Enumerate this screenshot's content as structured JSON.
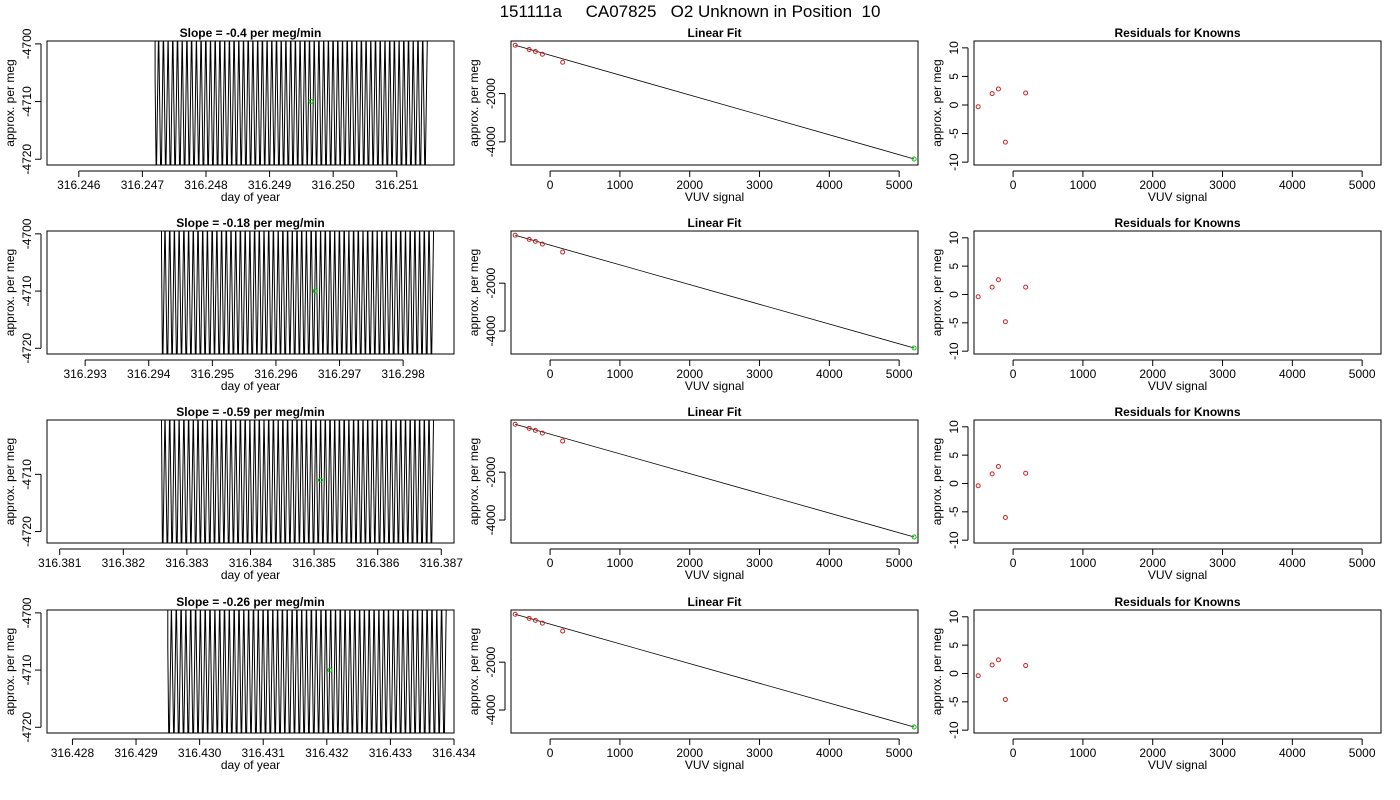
{
  "page": {
    "title": "151111a     CA07825   O2 Unknown in Position  10"
  },
  "colors": {
    "trace": "#000000",
    "unknown_point": "#00cc00",
    "residual_point": "#cc2222",
    "frame": "#000000"
  },
  "chart_data": [
    {
      "type": "line",
      "row": 1,
      "title": "Slope =  -0.4  per meg/min",
      "xlabel": "day of year",
      "ylabel": "approx. per meg",
      "xlim": [
        316.2455,
        316.2519
      ],
      "ylim": [
        -4721,
        -4699.5
      ],
      "xticks": [
        316.246,
        316.247,
        316.248,
        316.249,
        316.25,
        316.251
      ],
      "xtick_labels": [
        "316.246",
        "316.247",
        "316.248",
        "316.249",
        "316.250",
        "316.251"
      ],
      "yticks": [
        -4700,
        -4710,
        -4720
      ],
      "ytick_labels": [
        "-4700",
        "-4710",
        "-4720"
      ],
      "trace_x_range": [
        316.2472,
        316.2515
      ],
      "trace_y_range": [
        -4721,
        -4699.5
      ],
      "trace_onset_y": -4706,
      "trace_cycles": 58,
      "unknown_point": {
        "x": 316.24965,
        "y": -4710.0
      }
    },
    {
      "type": "scatter",
      "row": 1,
      "title": "Linear Fit",
      "xlabel": "VUV signal",
      "ylabel": "approx. per meg",
      "xlim": [
        -560,
        5270
      ],
      "ylim": [
        -4960,
        180
      ],
      "xticks": [
        0,
        1000,
        2000,
        3000,
        4000,
        5000
      ],
      "xtick_labels": [
        "0",
        "1000",
        "2000",
        "3000",
        "4000",
        "5000"
      ],
      "yticks": [
        -2000,
        -4000
      ],
      "ytick_labels": [
        "-2000",
        "-4000"
      ],
      "known_points": [
        [
          -500,
          3
        ],
        [
          -300,
          -170
        ],
        [
          -210,
          -255
        ],
        [
          -110,
          -370
        ],
        [
          180,
          -700
        ]
      ],
      "unknown_point": [
        5215,
        -4710
      ],
      "fit_line": [
        [
          -500,
          3
        ],
        [
          5215,
          -4710
        ]
      ]
    },
    {
      "type": "scatter",
      "row": 1,
      "title": "Residuals for Knowns",
      "xlabel": "VUV signal",
      "ylabel": "approx. per meg",
      "xlim": [
        -560,
        5270
      ],
      "ylim": [
        -10.5,
        11.2
      ],
      "xticks": [
        0,
        1000,
        2000,
        3000,
        4000,
        5000
      ],
      "xtick_labels": [
        "0",
        "1000",
        "2000",
        "3000",
        "4000",
        "5000"
      ],
      "yticks": [
        10,
        5,
        0,
        -5,
        -10
      ],
      "ytick_labels": [
        "10",
        "5",
        "0",
        "-5",
        "-10"
      ],
      "points": [
        [
          -500,
          -0.3
        ],
        [
          -300,
          2.0
        ],
        [
          -210,
          2.8
        ],
        [
          -110,
          -6.5
        ],
        [
          180,
          2.1
        ]
      ]
    },
    {
      "type": "line",
      "row": 2,
      "title": "Slope =  -0.18  per meg/min",
      "xlabel": "day of year",
      "ylabel": "approx. per meg",
      "xlim": [
        316.2924,
        316.2988
      ],
      "ylim": [
        -4721,
        -4699.5
      ],
      "xticks": [
        316.293,
        316.294,
        316.295,
        316.296,
        316.297,
        316.298
      ],
      "xtick_labels": [
        "316.293",
        "316.294",
        "316.295",
        "316.296",
        "316.297",
        "316.298"
      ],
      "yticks": [
        -4700,
        -4710,
        -4720
      ],
      "ytick_labels": [
        "-4700",
        "-4710",
        "-4720"
      ],
      "trace_x_range": [
        316.2942,
        316.2985
      ],
      "trace_y_range": [
        -4721,
        -4699.5
      ],
      "trace_onset_y": -4703,
      "trace_cycles": 58,
      "unknown_point": {
        "x": 316.29662,
        "y": -4710.0
      }
    },
    {
      "type": "scatter",
      "row": 2,
      "title": "Linear Fit",
      "xlabel": "VUV signal",
      "ylabel": "approx. per meg",
      "xlim": [
        -560,
        5270
      ],
      "ylim": [
        -4960,
        180
      ],
      "xticks": [
        0,
        1000,
        2000,
        3000,
        4000,
        5000
      ],
      "xtick_labels": [
        "0",
        "1000",
        "2000",
        "3000",
        "4000",
        "5000"
      ],
      "yticks": [
        -2000,
        -4000
      ],
      "ytick_labels": [
        "-2000",
        "-4000"
      ],
      "known_points": [
        [
          -500,
          3
        ],
        [
          -300,
          -170
        ],
        [
          -210,
          -255
        ],
        [
          -110,
          -370
        ],
        [
          180,
          -700
        ]
      ],
      "unknown_point": [
        5215,
        -4710
      ],
      "fit_line": [
        [
          -500,
          3
        ],
        [
          5215,
          -4710
        ]
      ]
    },
    {
      "type": "scatter",
      "row": 2,
      "title": "Residuals for Knowns",
      "xlabel": "VUV signal",
      "ylabel": "approx. per meg",
      "xlim": [
        -560,
        5270
      ],
      "ylim": [
        -10.5,
        11.2
      ],
      "xticks": [
        0,
        1000,
        2000,
        3000,
        4000,
        5000
      ],
      "xtick_labels": [
        "0",
        "1000",
        "2000",
        "3000",
        "4000",
        "5000"
      ],
      "yticks": [
        10,
        5,
        0,
        -5,
        -10
      ],
      "ytick_labels": [
        "10",
        "5",
        "0",
        "-5",
        "-10"
      ],
      "points": [
        [
          -500,
          -0.4
        ],
        [
          -300,
          1.3
        ],
        [
          -210,
          2.6
        ],
        [
          -110,
          -4.8
        ],
        [
          180,
          1.3
        ]
      ]
    },
    {
      "type": "line",
      "row": 3,
      "title": "Slope =  -0.59  per meg/min",
      "xlabel": "day of year",
      "ylabel": "approx. per meg",
      "xlim": [
        316.3808,
        316.3872
      ],
      "ylim": [
        -4722,
        -4700.5
      ],
      "xticks": [
        316.381,
        316.382,
        316.383,
        316.384,
        316.385,
        316.386,
        316.387
      ],
      "xtick_labels": [
        "316.381",
        "316.382",
        "316.383",
        "316.384",
        "316.385",
        "316.386",
        "316.387"
      ],
      "yticks": [
        -4710,
        -4720
      ],
      "ytick_labels": [
        "-4710",
        "-4720"
      ],
      "trace_x_range": [
        316.3826,
        316.3869
      ],
      "trace_y_range": [
        -4722,
        -4700.5
      ],
      "trace_onset_y": -4701,
      "trace_cycles": 58,
      "unknown_point": {
        "x": 316.3851,
        "y": -4711.0
      }
    },
    {
      "type": "scatter",
      "row": 3,
      "title": "Linear Fit",
      "xlabel": "VUV signal",
      "ylabel": "approx. per meg",
      "xlim": [
        -560,
        5270
      ],
      "ylim": [
        -4960,
        180
      ],
      "xticks": [
        0,
        1000,
        2000,
        3000,
        4000,
        5000
      ],
      "xtick_labels": [
        "0",
        "1000",
        "2000",
        "3000",
        "4000",
        "5000"
      ],
      "yticks": [
        -2000,
        -4000
      ],
      "ytick_labels": [
        "-2000",
        "-4000"
      ],
      "known_points": [
        [
          -500,
          3
        ],
        [
          -300,
          -170
        ],
        [
          -210,
          -255
        ],
        [
          -110,
          -370
        ],
        [
          180,
          -700
        ]
      ],
      "unknown_point": [
        5215,
        -4710
      ],
      "fit_line": [
        [
          -500,
          3
        ],
        [
          5215,
          -4710
        ]
      ]
    },
    {
      "type": "scatter",
      "row": 3,
      "title": "Residuals for Knowns",
      "xlabel": "VUV signal",
      "ylabel": "approx. per meg",
      "xlim": [
        -560,
        5270
      ],
      "ylim": [
        -10.5,
        11.2
      ],
      "xticks": [
        0,
        1000,
        2000,
        3000,
        4000,
        5000
      ],
      "xtick_labels": [
        "0",
        "1000",
        "2000",
        "3000",
        "4000",
        "5000"
      ],
      "yticks": [
        10,
        5,
        0,
        -5,
        -10
      ],
      "ytick_labels": [
        "10",
        "5",
        "0",
        "-5",
        "-10"
      ],
      "points": [
        [
          -500,
          -0.4
        ],
        [
          -300,
          1.7
        ],
        [
          -210,
          3.0
        ],
        [
          -110,
          -6.0
        ],
        [
          180,
          1.8
        ]
      ]
    },
    {
      "type": "line",
      "row": 4,
      "title": "Slope =  -0.26  per meg/min",
      "xlabel": "day of year",
      "ylabel": "approx. per meg",
      "xlim": [
        316.4276,
        316.434
      ],
      "ylim": [
        -4721,
        -4699.5
      ],
      "xticks": [
        316.428,
        316.429,
        316.43,
        316.431,
        316.432,
        316.433,
        316.434
      ],
      "xtick_labels": [
        "316.428",
        "316.429",
        "316.430",
        "316.431",
        "316.432",
        "316.433",
        "316.434"
      ],
      "yticks": [
        -4700,
        -4710,
        -4720
      ],
      "ytick_labels": [
        "-4700",
        "-4710",
        "-4720"
      ],
      "trace_x_range": [
        316.4295,
        316.4339
      ],
      "trace_y_range": [
        -4721,
        -4699.5
      ],
      "trace_onset_y": -4706,
      "trace_cycles": 58,
      "unknown_point": {
        "x": 316.43205,
        "y": -4710.0
      }
    },
    {
      "type": "scatter",
      "row": 4,
      "title": "Linear Fit",
      "xlabel": "VUV signal",
      "ylabel": "approx. per meg",
      "xlim": [
        -560,
        5270
      ],
      "ylim": [
        -4960,
        180
      ],
      "xticks": [
        0,
        1000,
        2000,
        3000,
        4000,
        5000
      ],
      "xtick_labels": [
        "0",
        "1000",
        "2000",
        "3000",
        "4000",
        "5000"
      ],
      "yticks": [
        -2000,
        -4000
      ],
      "ytick_labels": [
        "-2000",
        "-4000"
      ],
      "known_points": [
        [
          -500,
          3
        ],
        [
          -300,
          -170
        ],
        [
          -210,
          -255
        ],
        [
          -110,
          -370
        ],
        [
          180,
          -700
        ]
      ],
      "unknown_point": [
        5215,
        -4710
      ],
      "fit_line": [
        [
          -500,
          3
        ],
        [
          5215,
          -4710
        ]
      ]
    },
    {
      "type": "scatter",
      "row": 4,
      "title": "Residuals for Knowns",
      "xlabel": "VUV signal",
      "ylabel": "approx. per meg",
      "xlim": [
        -560,
        5270
      ],
      "ylim": [
        -10.5,
        11.2
      ],
      "xticks": [
        0,
        1000,
        2000,
        3000,
        4000,
        5000
      ],
      "xtick_labels": [
        "0",
        "1000",
        "2000",
        "3000",
        "4000",
        "5000"
      ],
      "yticks": [
        10,
        5,
        0,
        -5,
        -10
      ],
      "ytick_labels": [
        "10",
        "5",
        "0",
        "-5",
        "-10"
      ],
      "points": [
        [
          -500,
          -0.4
        ],
        [
          -300,
          1.5
        ],
        [
          -210,
          2.4
        ],
        [
          -110,
          -4.6
        ],
        [
          180,
          1.4
        ]
      ]
    }
  ]
}
